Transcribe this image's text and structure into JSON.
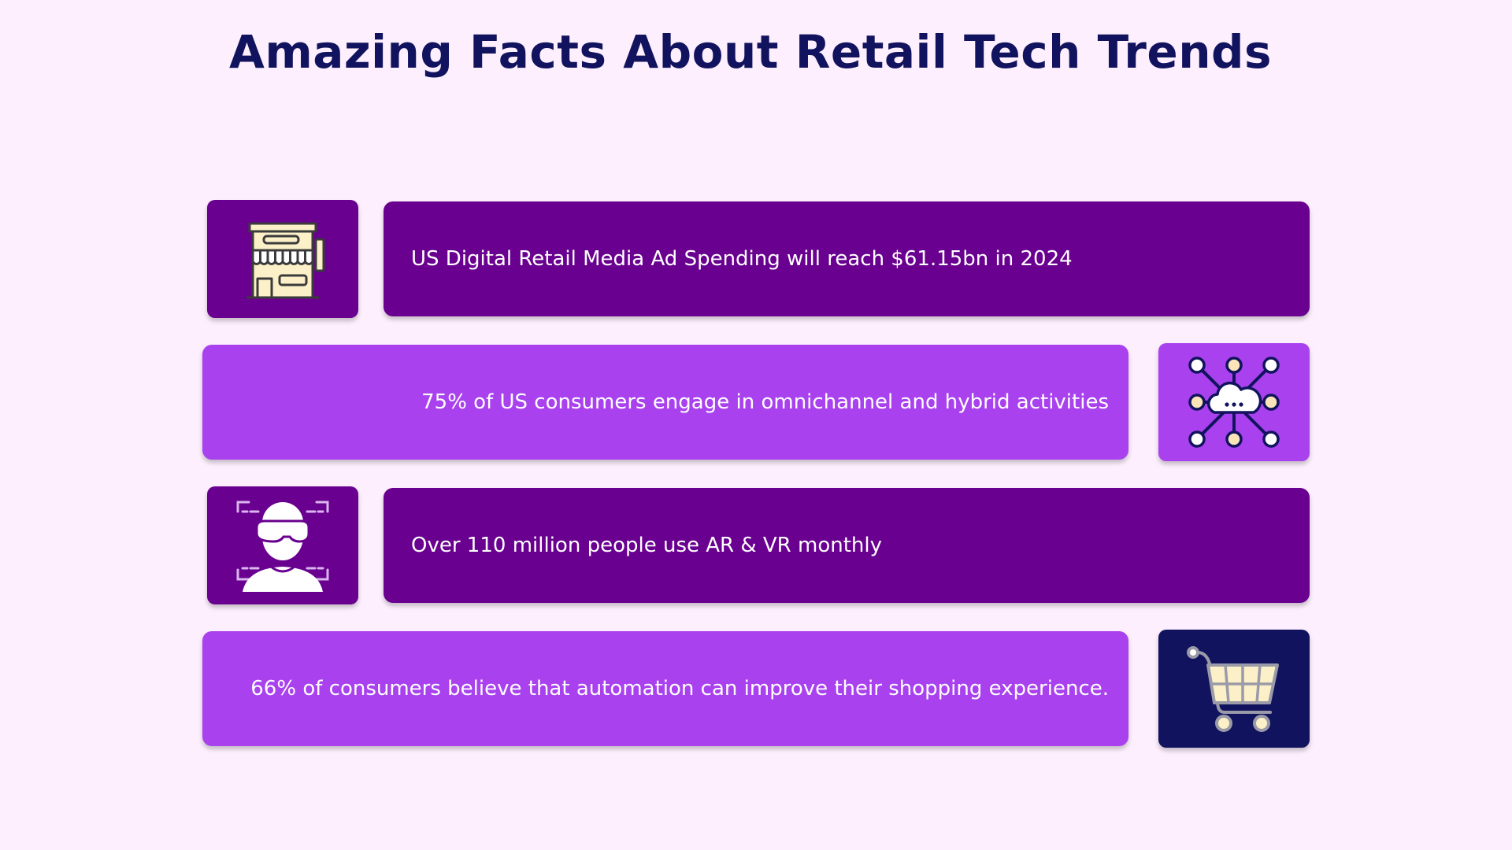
{
  "title": "Amazing Facts About Retail Tech Trends",
  "colors": {
    "background": "#fdeffd",
    "title": "#11135e",
    "bar_dark": "#690090",
    "bar_light": "#a942ee",
    "icon_navy": "#11135e",
    "icon_cream": "#fbf0c8"
  },
  "facts": [
    {
      "text": "US Digital Retail Media Ad Spending will reach $61.15bn in 2024",
      "icon": "storefront-icon"
    },
    {
      "text": "75% of US consumers engage in omnichannel and hybrid activities",
      "icon": "cloud-network-icon"
    },
    {
      "text": "Over 110 million people use AR & VR monthly",
      "icon": "vr-headset-person-icon"
    },
    {
      "text": "66% of consumers believe that automation can improve their shopping experience.",
      "icon": "shopping-cart-icon"
    }
  ]
}
